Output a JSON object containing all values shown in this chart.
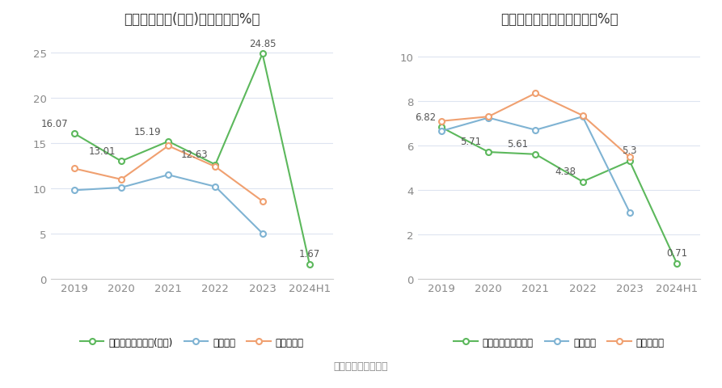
{
  "chart1": {
    "title": "净资产收益率(加权)历年情况（%）",
    "categories": [
      "2019",
      "2020",
      "2021",
      "2022",
      "2023",
      "2024H1"
    ],
    "series": [
      {
        "name": "公司净资产收益率(加权)",
        "values": [
          16.07,
          13.01,
          15.19,
          12.63,
          24.85,
          1.67
        ],
        "color": "#5cb85c",
        "marker": "o"
      },
      {
        "name": "行业均值",
        "values": [
          9.8,
          10.1,
          11.5,
          10.2,
          5.05,
          null
        ],
        "color": "#7fb3d3",
        "marker": "o"
      },
      {
        "name": "行业中位数",
        "values": [
          12.2,
          11.0,
          14.7,
          12.4,
          8.6,
          null
        ],
        "color": "#f0a070",
        "marker": "o"
      }
    ],
    "ylim": [
      0,
      27
    ],
    "yticks": [
      0,
      5,
      10,
      15,
      20,
      25
    ]
  },
  "chart2": {
    "title": "投入资本回报率历年情况（%）",
    "categories": [
      "2019",
      "2020",
      "2021",
      "2022",
      "2023",
      "2024H1"
    ],
    "series": [
      {
        "name": "公司投入资本回报率",
        "values": [
          6.82,
          5.71,
          5.61,
          4.38,
          5.3,
          0.71
        ],
        "color": "#5cb85c",
        "marker": "o"
      },
      {
        "name": "行业均值",
        "values": [
          6.65,
          7.25,
          6.7,
          7.3,
          3.0,
          null
        ],
        "color": "#7fb3d3",
        "marker": "o"
      },
      {
        "name": "行业中位数",
        "values": [
          7.1,
          7.3,
          8.35,
          7.35,
          5.48,
          null
        ],
        "color": "#f0a070",
        "marker": "o"
      }
    ],
    "ylim": [
      0,
      11
    ],
    "yticks": [
      0,
      2,
      4,
      6,
      8,
      10
    ]
  },
  "legend_labels": [
    "公司净资产收益率(加权)",
    "行业均值",
    "行业中位数"
  ],
  "legend_labels2": [
    "公司投入资本回报率",
    "行业均值",
    "行业中位数"
  ],
  "footer": "数据来源：恒生聚源",
  "bg_color": "#ffffff",
  "grid_color": "#dde4f0",
  "title_fontsize": 12,
  "tick_fontsize": 9.5,
  "label_fontsize": 8.5,
  "legend_fontsize": 8.5,
  "footer_fontsize": 9
}
